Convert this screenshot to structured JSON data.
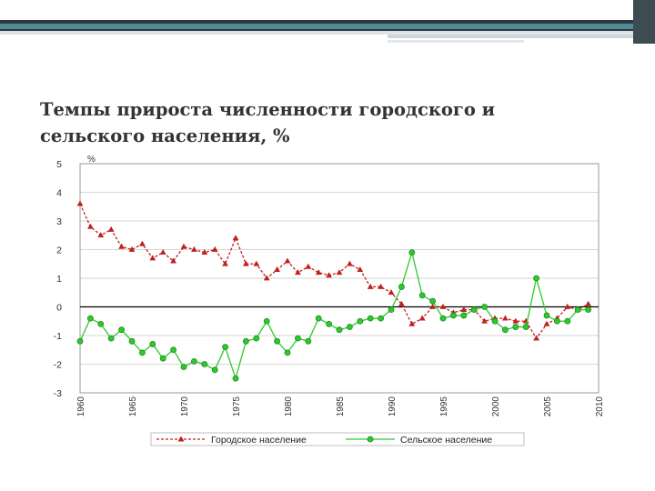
{
  "slide": {
    "title_line1": "Темпы прироста численности городского и",
    "title_line2": "сельского населения, %"
  },
  "chart_data": {
    "type": "line",
    "title": "",
    "ylabel": "%",
    "xlabel": "",
    "ylim": [
      -3,
      5
    ],
    "xlim": [
      1960,
      2010
    ],
    "yticks": [
      "5",
      "4",
      "3",
      "2",
      "1",
      "0",
      "-1",
      "-2",
      "-3"
    ],
    "xticks": [
      "1960",
      "1965",
      "1970",
      "1975",
      "1980",
      "1985",
      "1990",
      "1995",
      "2000",
      "2005",
      "2010"
    ],
    "grid": true,
    "legend_position": "bottom",
    "colors": {
      "urban": "#c0201e",
      "rural": "#2ec92e",
      "plot_border": "#9a9a9a",
      "grid": "#c8c8c8"
    },
    "x": [
      1960,
      1961,
      1962,
      1963,
      1964,
      1965,
      1966,
      1967,
      1968,
      1969,
      1970,
      1971,
      1972,
      1973,
      1974,
      1975,
      1976,
      1977,
      1978,
      1979,
      1980,
      1981,
      1982,
      1983,
      1984,
      1985,
      1986,
      1987,
      1988,
      1989,
      1990,
      1991,
      1992,
      1993,
      1994,
      1995,
      1996,
      1997,
      1998,
      1999,
      2000,
      2001,
      2002,
      2003,
      2004,
      2005,
      2006,
      2007,
      2008,
      2009
    ],
    "series": [
      {
        "name": "Городское население",
        "marker": "triangle",
        "values": [
          3.6,
          2.8,
          2.5,
          2.7,
          2.1,
          2.0,
          2.2,
          1.7,
          1.9,
          1.6,
          2.1,
          2.0,
          1.9,
          2.0,
          1.5,
          2.4,
          1.5,
          1.5,
          1.0,
          1.3,
          1.6,
          1.2,
          1.4,
          1.2,
          1.1,
          1.2,
          1.5,
          1.3,
          0.7,
          0.7,
          0.5,
          0.1,
          -0.6,
          -0.4,
          0.0,
          0.0,
          -0.2,
          -0.1,
          -0.1,
          -0.5,
          -0.4,
          -0.4,
          -0.5,
          -0.5,
          -1.1,
          -0.6,
          -0.4,
          0.0,
          -0.1,
          0.1
        ]
      },
      {
        "name": "Сельское население",
        "marker": "circle",
        "values": [
          -1.2,
          -0.4,
          -0.6,
          -1.1,
          -0.8,
          -1.2,
          -1.6,
          -1.3,
          -1.8,
          -1.5,
          -2.1,
          -1.9,
          -2.0,
          -2.2,
          -1.4,
          -2.5,
          -1.2,
          -1.1,
          -0.5,
          -1.2,
          -1.6,
          -1.1,
          -1.2,
          -0.4,
          -0.6,
          -0.8,
          -0.7,
          -0.5,
          -0.4,
          -0.4,
          -0.1,
          0.7,
          1.9,
          0.4,
          0.2,
          -0.4,
          -0.3,
          -0.3,
          -0.1,
          0.0,
          -0.5,
          -0.8,
          -0.7,
          -0.7,
          1.0,
          -0.3,
          -0.5,
          -0.5,
          -0.1,
          -0.1
        ]
      }
    ]
  }
}
